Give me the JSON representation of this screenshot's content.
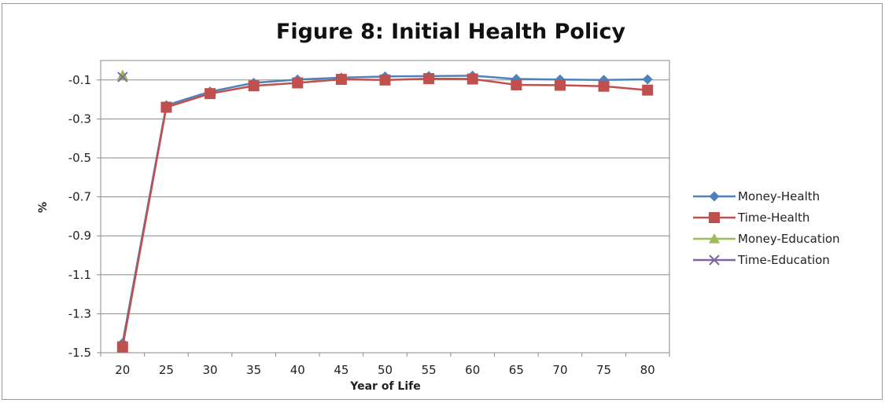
{
  "chart_data": {
    "type": "line",
    "title": "Figure 8: Initial Health Policy",
    "xlabel": "Year of Life",
    "ylabel": "%",
    "categories": [
      "20",
      "25",
      "30",
      "35",
      "40",
      "45",
      "50",
      "55",
      "60",
      "65",
      "70",
      "75",
      "80"
    ],
    "ylim": [
      -1.5,
      0.0
    ],
    "yticks": [
      "-0.1",
      "-0.3",
      "-0.5",
      "-0.7",
      "-0.9",
      "-1.1",
      "-1.3",
      "-1.5"
    ],
    "ytick_values": [
      -0.1,
      -0.3,
      -0.5,
      -0.7,
      -0.9,
      -1.1,
      -1.3,
      -1.5
    ],
    "grid": "horizontal",
    "legend_position": "right",
    "series": [
      {
        "name": "Money-Health",
        "color": "#4f81bd",
        "marker": "diamond",
        "values": [
          -1.45,
          -0.23,
          -0.16,
          -0.115,
          -0.098,
          -0.088,
          -0.082,
          -0.08,
          -0.078,
          -0.095,
          -0.098,
          -0.1,
          -0.097
        ]
      },
      {
        "name": "Time-Health",
        "color": "#c0504d",
        "marker": "square",
        "values": [
          -1.47,
          -0.24,
          -0.17,
          -0.13,
          -0.115,
          -0.097,
          -0.1,
          -0.093,
          -0.095,
          -0.125,
          -0.127,
          -0.132,
          -0.152
        ]
      },
      {
        "name": "Money-Education",
        "color": "#9bbb59",
        "marker": "triangle",
        "values": [
          -0.075,
          null,
          null,
          null,
          null,
          null,
          null,
          null,
          null,
          null,
          null,
          null,
          null
        ]
      },
      {
        "name": "Time-Education",
        "color": "#8064a2",
        "marker": "x",
        "values": [
          -0.085,
          null,
          null,
          null,
          null,
          null,
          null,
          null,
          null,
          null,
          null,
          null,
          null
        ]
      }
    ]
  }
}
